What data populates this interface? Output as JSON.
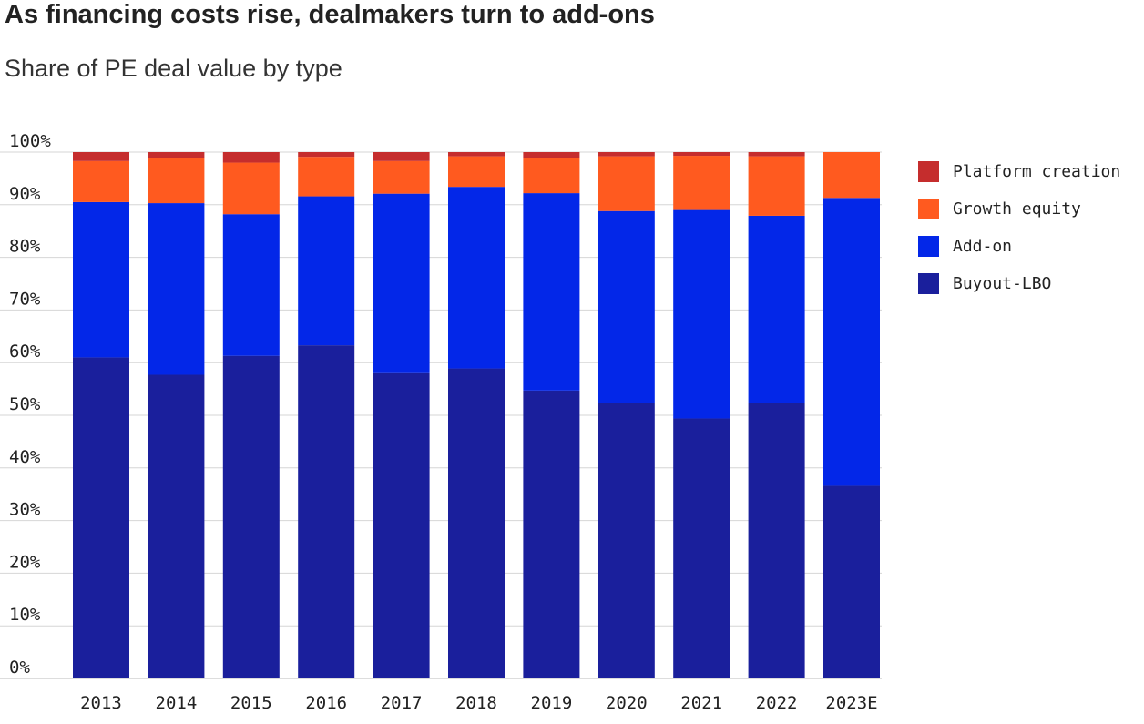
{
  "header": {
    "title": "As financing costs rise, dealmakers turn to add-ons",
    "subtitle": "Share of PE deal value by type"
  },
  "chart_data": {
    "type": "bar",
    "stacked": true,
    "title": "As financing costs rise, dealmakers turn to add-ons",
    "subtitle": "Share of PE deal value by type",
    "xlabel": "",
    "ylabel": "",
    "ylim": [
      0,
      100
    ],
    "grid": true,
    "legend_position": "right",
    "y_ticks": [
      0,
      10,
      20,
      30,
      40,
      50,
      60,
      70,
      80,
      90,
      100
    ],
    "y_tick_labels": [
      "0%",
      "10%",
      "20%",
      "30%",
      "40%",
      "50%",
      "60%",
      "70%",
      "80%",
      "90%",
      "100%"
    ],
    "categories": [
      "2013",
      "2014",
      "2015",
      "2016",
      "2017",
      "2018",
      "2019",
      "2020",
      "2021",
      "2022",
      "2023E"
    ],
    "series": [
      {
        "name": "Buyout-LBO",
        "color": "#1a1f9c",
        "values": [
          61,
          57.7,
          61.3,
          63.3,
          58,
          58.9,
          54.7,
          52.4,
          49.4,
          52.3,
          36.6
        ]
      },
      {
        "name": "Add-on",
        "color": "#0327e8",
        "values": [
          29.5,
          32.6,
          26.9,
          28.3,
          34.1,
          34.5,
          37.5,
          36.4,
          39.6,
          35.6,
          54.7
        ]
      },
      {
        "name": "Growth equity",
        "color": "#ff5a1f",
        "values": [
          7.8,
          8.5,
          9.8,
          7.5,
          6.2,
          5.8,
          6.7,
          10.4,
          10.3,
          11.3,
          8.7
        ]
      },
      {
        "name": "Platform creation",
        "color": "#c52d2d",
        "values": [
          1.7,
          1.2,
          2,
          0.9,
          1.7,
          0.8,
          1.1,
          0.8,
          0.7,
          0.8,
          0
        ]
      }
    ],
    "legend_order": [
      "Platform creation",
      "Growth equity",
      "Add-on",
      "Buyout-LBO"
    ]
  }
}
